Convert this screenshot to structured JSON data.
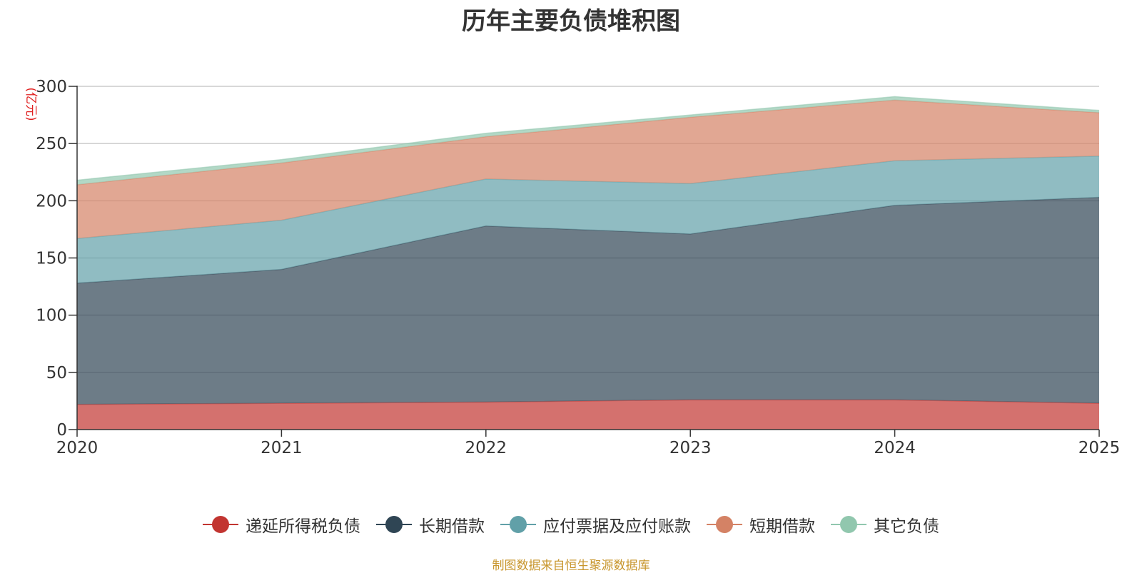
{
  "chart_data": {
    "type": "area",
    "stacked": true,
    "title": "历年主要负债堆积图",
    "ylabel": "(亿元)",
    "xlabel": "",
    "categories": [
      "2020",
      "2021",
      "2022",
      "2023",
      "2024",
      "2025"
    ],
    "ylim": [
      0,
      300
    ],
    "yticks": [
      0,
      50,
      100,
      150,
      200,
      250,
      300
    ],
    "grid": true,
    "legend_position": "bottom",
    "series": [
      {
        "name": "递延所得税负债",
        "color": "#c23531",
        "values": [
          22,
          23,
          24,
          26,
          26,
          23
        ]
      },
      {
        "name": "长期借款",
        "color": "#2f4554",
        "values": [
          106,
          117,
          154,
          145,
          170,
          180
        ]
      },
      {
        "name": "应付票据及应付账款",
        "color": "#61a0a8",
        "values": [
          39,
          43,
          41,
          44,
          39,
          36
        ]
      },
      {
        "name": "短期借款",
        "color": "#d48265",
        "values": [
          47,
          50,
          37,
          58,
          53,
          38
        ]
      },
      {
        "name": "其它负债",
        "color": "#91c7ae",
        "values": [
          4,
          3,
          3,
          2,
          3,
          2
        ]
      }
    ]
  },
  "footer": {
    "source_note": "制图数据来自恒生聚源数据库"
  }
}
